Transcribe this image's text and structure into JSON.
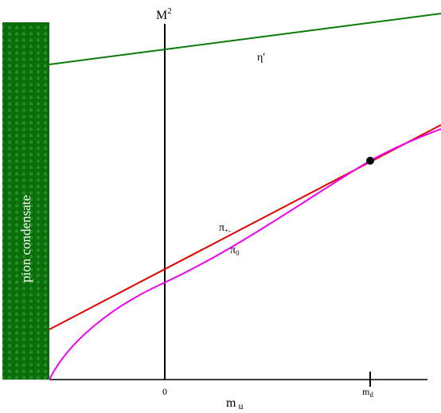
{
  "axes": {
    "y_label": "M",
    "y_label_sup": "2",
    "x_label": "m",
    "x_label_sub": "u",
    "x_tick_zero": "0",
    "x_tick_md": "m",
    "x_tick_md_sub": "d"
  },
  "curves": [
    {
      "label": "η'"
    },
    {
      "label": "π",
      "sub": "+-"
    },
    {
      "label": "π",
      "sub": "0"
    }
  ],
  "region": "pion condensate"
}
